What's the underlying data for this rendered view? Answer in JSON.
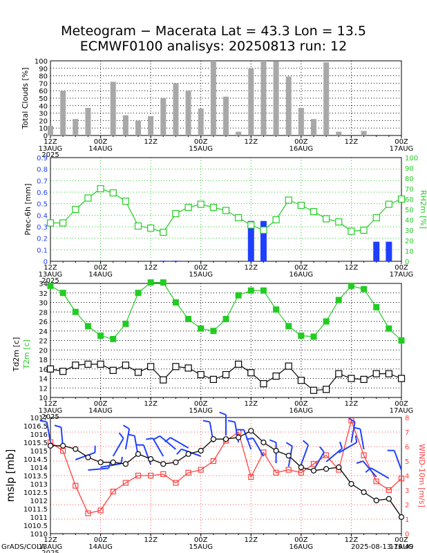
{
  "title_line1": "Meteogram − Macerata Lat = 43.3 Lon = 13.5",
  "title_line2": "ECMWF0100 analisys: 20250813 run: 12",
  "footer_left": "GrADS/COLA",
  "footer_right": "2025-08-13-19:49",
  "time_axis": {
    "tick_labels": [
      "12Z",
      "00Z",
      "12Z",
      "00Z",
      "12Z",
      "00Z",
      "12Z",
      "00Z"
    ],
    "date_labels": [
      "13AUG",
      "14AUG",
      "15AUG",
      "16AUG",
      "17AUG"
    ],
    "year_label": "2025"
  },
  "chart_data": [
    {
      "type": "bar",
      "ylabel": "Total Clouds [%]",
      "ylim": [
        0,
        100
      ],
      "yticks": [
        "0",
        "10",
        "20",
        "30",
        "40",
        "50",
        "60",
        "70",
        "80",
        "90",
        "100"
      ],
      "color": "#a8a8a8",
      "values": [
        13,
        60,
        22,
        37,
        0,
        72,
        27,
        20,
        26,
        50,
        70,
        60,
        36,
        100,
        52,
        5,
        90,
        100,
        99,
        79,
        37,
        22,
        98,
        5,
        0,
        6,
        0,
        0,
        0
      ]
    },
    {
      "type": "bar+line",
      "ylabel_left": "Prec-6h [mm]",
      "ylabel_right": "RH2m [%]",
      "ylim_left": [
        0,
        0.9
      ],
      "ylim_right": [
        0,
        100
      ],
      "yticks_left": [
        "0",
        "0.1",
        "0.2",
        "0.3",
        "0.4",
        "0.5",
        "0.6",
        "0.7",
        "0.8",
        "0.9"
      ],
      "yticks_right": [
        "0",
        "10",
        "20",
        "30",
        "40",
        "50",
        "60",
        "70",
        "80",
        "90",
        "100"
      ],
      "precip_color": "#1f3fff",
      "rh_color": "#22cc22",
      "precip_values": [
        0,
        0,
        0,
        0,
        0,
        0,
        0,
        0,
        0,
        0.005,
        0.005,
        0,
        0,
        0,
        0,
        0,
        0.35,
        0.35,
        0,
        0,
        0,
        0,
        0,
        0,
        0,
        0,
        0.17,
        0.17,
        0
      ],
      "rh_values": [
        37,
        37,
        50,
        61,
        70,
        66,
        58,
        34,
        32,
        28,
        46,
        52,
        55,
        52,
        49,
        42,
        35,
        30,
        40,
        59,
        54,
        48,
        41,
        38,
        29,
        30,
        42,
        55,
        60
      ]
    },
    {
      "type": "line",
      "ylabel_left": "Td2m [c]",
      "ylabel_right": "T2m [c]",
      "ylim": [
        10,
        34
      ],
      "yticks": [
        "10",
        "12",
        "14",
        "16",
        "18",
        "20",
        "22",
        "24",
        "26",
        "28",
        "30",
        "32",
        "34"
      ],
      "t2m_color": "#22cc22",
      "t2m_values": [
        33.5,
        32,
        28,
        25,
        23,
        22.3,
        25.5,
        32,
        34.2,
        34.2,
        30,
        26.5,
        24.5,
        24,
        26.5,
        31.5,
        32.5,
        32.5,
        28.5,
        25,
        23,
        22.8,
        26,
        30.5,
        33.5,
        32.8,
        29,
        24.5,
        22
      ],
      "td2m_values": [
        16,
        15.5,
        16.8,
        17,
        17,
        15.7,
        16.8,
        15.3,
        16.5,
        13.7,
        16.5,
        16.2,
        14.8,
        13.8,
        14.8,
        17,
        15.2,
        12.9,
        14.5,
        16.6,
        13.6,
        11.5,
        11.7,
        15,
        14,
        13.8,
        15,
        15,
        14
      ]
    },
    {
      "type": "line+barbs",
      "ylabel_left": "mslp [mb]",
      "ylabel_right": "WIND-10m [m/s]",
      "ylim_left": [
        1010,
        1017
      ],
      "ylim_right": [
        0,
        8
      ],
      "yticks_left": [
        "1010",
        "1010.5",
        "1011",
        "1011.5",
        "1012",
        "1012.5",
        "1013",
        "1013.5",
        "1014",
        "1014.5",
        "1015",
        "1015.5",
        "1016",
        "1016.5",
        "1017"
      ],
      "yticks_right": [
        "0",
        "1",
        "2",
        "3",
        "4",
        "5",
        "6",
        "7",
        "8"
      ],
      "mslp_color": "#000000",
      "wind_color": "#ff4040",
      "barb_color": "#2040ff",
      "mslp_values": [
        1015.3,
        1015.3,
        1015.1,
        1014.6,
        1014.3,
        1014.3,
        1014.2,
        1014.8,
        1014.5,
        1014.2,
        1014.3,
        1014.8,
        1015,
        1015.7,
        1015.7,
        1015.8,
        1016.2,
        1015.5,
        1015,
        1014.7,
        1014,
        1013.8,
        1013.9,
        1014,
        1013,
        1012.5,
        1012,
        1012.1,
        1011
      ]
    }
  ]
}
